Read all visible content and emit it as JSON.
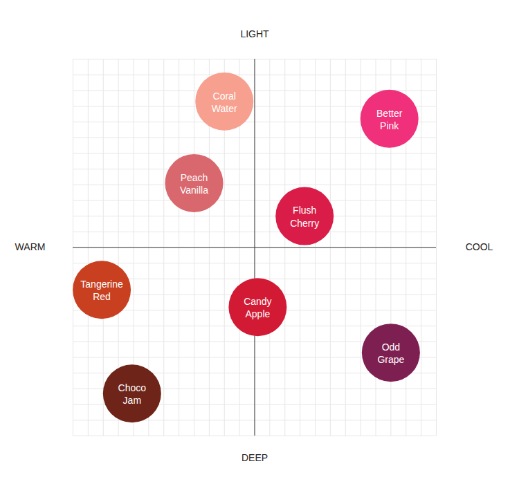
{
  "chart_data": {
    "type": "scatter",
    "x_axis": {
      "low": "WARM",
      "high": "COOL"
    },
    "y_axis": {
      "low": "DEEP",
      "high": "LIGHT"
    },
    "categories": [
      "Coral Water",
      "Better Pink",
      "Peach Vanilla",
      "Flush Cherry",
      "Tangerine Red",
      "Candy Apple",
      "Odd Grape",
      "Choco Jam"
    ],
    "x": [
      -2.0,
      8.9,
      -4.0,
      3.3,
      -10.1,
      0.2,
      9.0,
      -8.1
    ],
    "values": [
      9.3,
      8.2,
      4.1,
      2.0,
      -2.7,
      -3.8,
      -6.7,
      -9.3
    ],
    "colors": [
      "#f7a08f",
      "#f0307a",
      "#d9686e",
      "#d91c48",
      "#c8401f",
      "#d21a34",
      "#7e1f52",
      "#6e2418"
    ],
    "xlim": [
      -12,
      12
    ],
    "ylim": [
      -12,
      12
    ],
    "xticks": [
      -12,
      -11,
      -10,
      -9,
      -8,
      -7,
      -6,
      -5,
      -4,
      -3,
      -2,
      -1,
      0,
      1,
      2,
      3,
      4,
      5,
      6,
      7,
      8,
      9,
      10,
      11,
      12
    ],
    "yticks": [
      -12,
      -11,
      -10,
      -9,
      -8,
      -7,
      -6,
      -5,
      -4,
      -3,
      -2,
      -1,
      0,
      1,
      2,
      3,
      4,
      5,
      6,
      7,
      8,
      9,
      10,
      11,
      12
    ],
    "grid": true,
    "tick_labels": false,
    "data_labels": true
  }
}
